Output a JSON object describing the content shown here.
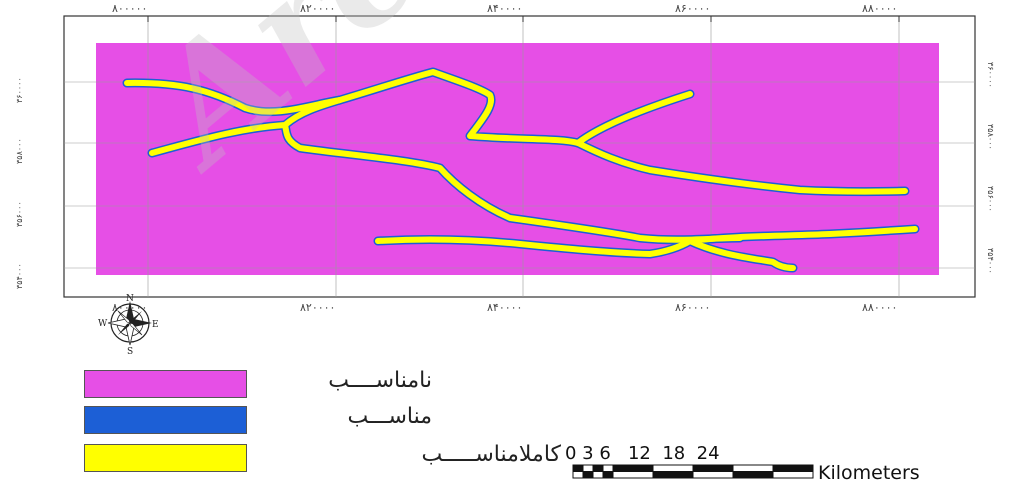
{
  "colors": {
    "unsuitable": "#e64fe6",
    "suitable": "#1c5fd6",
    "very_suitable": "#ffff00",
    "frame": "#333333"
  },
  "axes": {
    "top_ticks": [
      "۸۰۰۰۰۰",
      "۸۲۰۰۰۰",
      "۸۴۰۰۰۰",
      "۸۶۰۰۰۰",
      "۸۸۰۰۰۰"
    ],
    "bottom_ticks": [
      "۸۰۰۰۰۰",
      "۸۲۰۰۰۰",
      "۸۴۰۰۰۰",
      "۸۶۰۰۰۰",
      "۸۸۰۰۰۰"
    ],
    "left_ticks": [
      "۳۶۰۰۰۰",
      "۳۵۸۰۰۰",
      "۳۵۶۰۰۰",
      "۳۵۴۰۰۰"
    ],
    "right_ticks": [
      "۳۶۰۰۰۰",
      "۳۵۸۰۰۰",
      "۳۵۶۰۰۰",
      "۳۵۴۰۰۰"
    ]
  },
  "north_arrow": {
    "icon": "compass-rose-icon",
    "n": "N",
    "s": "S",
    "e": "E",
    "w": "W"
  },
  "legend": [
    {
      "label": "نامناســــب",
      "color_key": "unsuitable"
    },
    {
      "label": "مناســـب",
      "color_key": "suitable"
    },
    {
      "label": "کاملامناســـــب",
      "color_key": "very_suitable"
    }
  ],
  "scale_bar": {
    "numbers": "0 3 6   12  18  24",
    "unit": "Kilometers"
  },
  "watermark": "Archive"
}
